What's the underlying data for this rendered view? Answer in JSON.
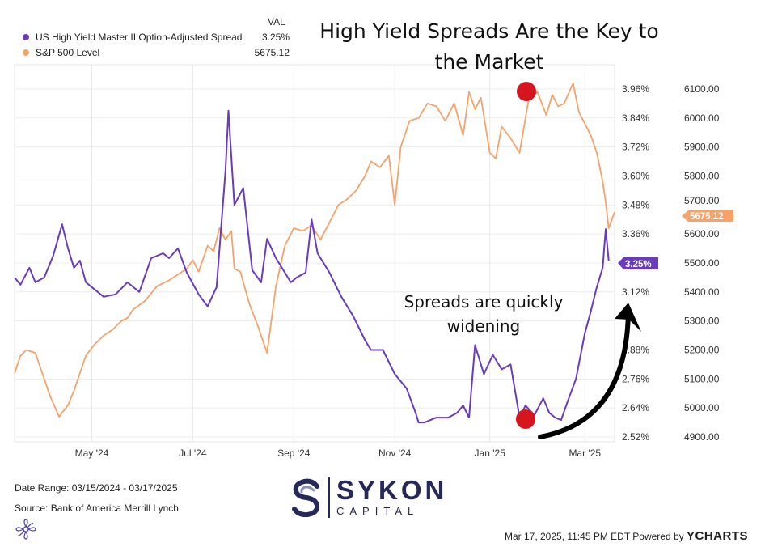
{
  "title": "High Yield Spreads Are the Key to the Market",
  "legend": {
    "val_header": "VAL",
    "items": [
      {
        "name": "US High Yield Master II Option-Adjusted Spread",
        "value": "3.25%",
        "color": "#6a3bbd"
      },
      {
        "name": "S&P 500 Level",
        "value": "5675.12",
        "color": "#f5a26b"
      }
    ]
  },
  "annotation": {
    "text": "Spreads are quickly widening"
  },
  "footer": {
    "date_range": "Date Range: 03/15/2024 - 03/17/2025",
    "source": "Source: Bank of America Merrill Lynch",
    "timestamp": "Mar 17, 2025, 11:45 PM EDT Powered by",
    "brand": "YCHARTS"
  },
  "logo": {
    "line1": "SYKON",
    "line2": "CAPITAL"
  },
  "chart_data": {
    "type": "line",
    "x_tick_labels": [
      "May '24",
      "Jul '24",
      "Sep '24",
      "Nov '24",
      "Jan '25",
      "Mar '25"
    ],
    "x_tick_times": [
      2024.33,
      2024.5,
      2024.67,
      2024.84,
      2025.0,
      2025.16
    ],
    "x_range": [
      2024.2,
      2025.21
    ],
    "y_left": {
      "label": "US High Yield Master II Option-Adjusted Spread (%)",
      "range": [
        2.52,
        4.02
      ],
      "ticks": [
        2.52,
        2.64,
        2.76,
        2.88,
        3.0,
        3.12,
        3.24,
        3.36,
        3.48,
        3.6,
        3.72,
        3.84,
        3.96
      ]
    },
    "y_right": {
      "label": "S&P 500 Level",
      "range": [
        4900,
        6150
      ],
      "ticks": [
        4900,
        5000,
        5100,
        5200,
        5300,
        5400,
        5500,
        5600,
        5700,
        5800,
        5900,
        6000,
        6100
      ]
    },
    "end_labels": {
      "spread": "3.25%",
      "sp500": "5675.12"
    },
    "series": [
      {
        "name": "US High Yield Master II Option-Adjusted Spread",
        "axis": "left",
        "color": "#6a3bbd",
        "x": [
          2024.2,
          2024.21,
          2024.225,
          2024.235,
          2024.25,
          2024.265,
          2024.28,
          2024.29,
          2024.3,
          2024.31,
          2024.32,
          2024.33,
          2024.35,
          2024.37,
          2024.39,
          2024.41,
          2024.43,
          2024.45,
          2024.46,
          2024.475,
          2024.49,
          2024.51,
          2024.525,
          2024.54,
          2024.555,
          2024.56,
          2024.57,
          2024.585,
          2024.6,
          2024.615,
          2024.625,
          2024.64,
          2024.655,
          2024.665,
          2024.675,
          2024.69,
          2024.7,
          2024.71,
          2024.73,
          2024.75,
          2024.77,
          2024.79,
          2024.8,
          2024.82,
          2024.84,
          2024.86,
          2024.875,
          2024.88,
          2024.89,
          2024.91,
          2024.93,
          2024.945,
          2024.955,
          2024.965,
          2024.975,
          2024.99,
          2025.005,
          2025.02,
          2025.035,
          2025.05,
          2025.06,
          2025.075,
          2025.09,
          2025.1,
          2025.11,
          2025.12,
          2025.13,
          2025.145,
          2025.16,
          2025.17,
          2025.18,
          2025.19,
          2025.195,
          2025.2
        ],
        "y": [
          3.18,
          3.15,
          3.22,
          3.16,
          3.18,
          3.27,
          3.4,
          3.3,
          3.22,
          3.25,
          3.16,
          3.14,
          3.1,
          3.11,
          3.16,
          3.12,
          3.26,
          3.28,
          3.26,
          3.3,
          3.2,
          3.11,
          3.06,
          3.14,
          3.62,
          3.87,
          3.48,
          3.55,
          3.21,
          3.16,
          3.34,
          3.26,
          3.2,
          3.16,
          3.18,
          3.2,
          3.42,
          3.28,
          3.2,
          3.1,
          3.02,
          2.92,
          2.88,
          2.88,
          2.78,
          2.72,
          2.62,
          2.58,
          2.58,
          2.6,
          2.6,
          2.62,
          2.65,
          2.6,
          2.9,
          2.78,
          2.86,
          2.8,
          2.82,
          2.6,
          2.65,
          2.61,
          2.68,
          2.62,
          2.6,
          2.59,
          2.66,
          2.76,
          2.95,
          3.04,
          3.14,
          3.22,
          3.38,
          3.25
        ]
      },
      {
        "name": "S&P 500 Level",
        "axis": "right",
        "color": "#f5a26b",
        "x": [
          2024.2,
          2024.21,
          2024.22,
          2024.235,
          2024.25,
          2024.26,
          2024.275,
          2024.29,
          2024.3,
          2024.31,
          2024.32,
          2024.335,
          2024.35,
          2024.365,
          2024.38,
          2024.39,
          2024.4,
          2024.42,
          2024.44,
          2024.46,
          2024.475,
          2024.49,
          2024.5,
          2024.51,
          2024.525,
          2024.535,
          2024.545,
          2024.555,
          2024.565,
          2024.57,
          2024.58,
          2024.595,
          2024.61,
          2024.625,
          2024.64,
          2024.655,
          2024.67,
          2024.685,
          2024.7,
          2024.715,
          2024.73,
          2024.745,
          2024.76,
          2024.775,
          2024.79,
          2024.8,
          2024.815,
          2024.83,
          2024.84,
          2024.85,
          2024.865,
          2024.88,
          2024.895,
          2024.91,
          2024.925,
          2024.94,
          2024.955,
          2024.965,
          2024.975,
          2024.985,
          2025.0,
          2025.01,
          2025.02,
          2025.035,
          2025.05,
          2025.065,
          2025.08,
          2025.095,
          2025.105,
          2025.115,
          2025.125,
          2025.14,
          2025.15,
          2025.16,
          2025.17,
          2025.18,
          2025.19,
          2025.195,
          2025.2,
          2025.21
        ],
        "y": [
          5120,
          5180,
          5200,
          5190,
          5100,
          5040,
          4970,
          5010,
          5060,
          5120,
          5180,
          5220,
          5250,
          5270,
          5300,
          5310,
          5340,
          5370,
          5420,
          5440,
          5460,
          5480,
          5510,
          5470,
          5560,
          5540,
          5620,
          5580,
          5610,
          5480,
          5470,
          5360,
          5280,
          5190,
          5420,
          5560,
          5620,
          5610,
          5630,
          5580,
          5640,
          5700,
          5720,
          5750,
          5800,
          5850,
          5830,
          5870,
          5700,
          5900,
          5990,
          6000,
          6050,
          6040,
          5990,
          6050,
          5940,
          6090,
          6030,
          6070,
          5880,
          5860,
          5970,
          5930,
          5880,
          6060,
          6090,
          6010,
          6080,
          6040,
          6050,
          6120,
          6020,
          5980,
          5940,
          5880,
          5780,
          5710,
          5620,
          5675
        ]
      }
    ]
  }
}
